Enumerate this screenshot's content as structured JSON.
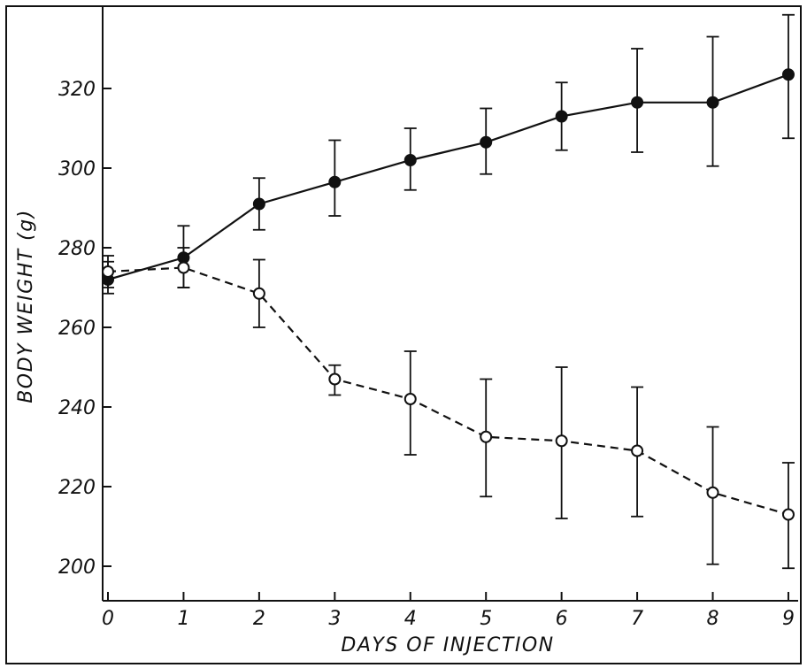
{
  "chart_data": {
    "type": "line",
    "xlabel": "DAYS OF INJECTION",
    "ylabel": "BODY WEIGHT (g)",
    "xlim": [
      0,
      9
    ],
    "ylim": [
      190,
      340
    ],
    "x_ticks": [
      0,
      1,
      2,
      3,
      4,
      5,
      6,
      7,
      8,
      9
    ],
    "y_ticks": [
      200,
      220,
      240,
      260,
      280,
      300,
      320
    ],
    "grid": false,
    "x": [
      0,
      1,
      2,
      3,
      4,
      5,
      6,
      7,
      8,
      9
    ],
    "series": [
      {
        "marker": "filled-circle",
        "line_style": "solid",
        "values": [
          272,
          277.5,
          291,
          296.5,
          302,
          306.5,
          313,
          316.5,
          316.5,
          323.5
        ],
        "error_low": [
          268.5,
          270,
          284.5,
          288,
          294.5,
          298.5,
          304.5,
          304,
          300.5,
          307.5
        ],
        "error_high": [
          276.5,
          285.5,
          297.5,
          307,
          310,
          315,
          321.5,
          330,
          333,
          338.5
        ]
      },
      {
        "marker": "open-circle",
        "line_style": "dashed",
        "values": [
          274,
          275,
          268.5,
          247,
          242,
          232.5,
          231.5,
          229,
          218.5,
          213
        ],
        "error_low": [
          270,
          270,
          260,
          243,
          228,
          217.5,
          212,
          212.5,
          200.5,
          199.5
        ],
        "error_high": [
          278,
          280,
          277,
          250.5,
          254,
          247,
          250,
          245,
          235,
          226
        ]
      }
    ]
  }
}
